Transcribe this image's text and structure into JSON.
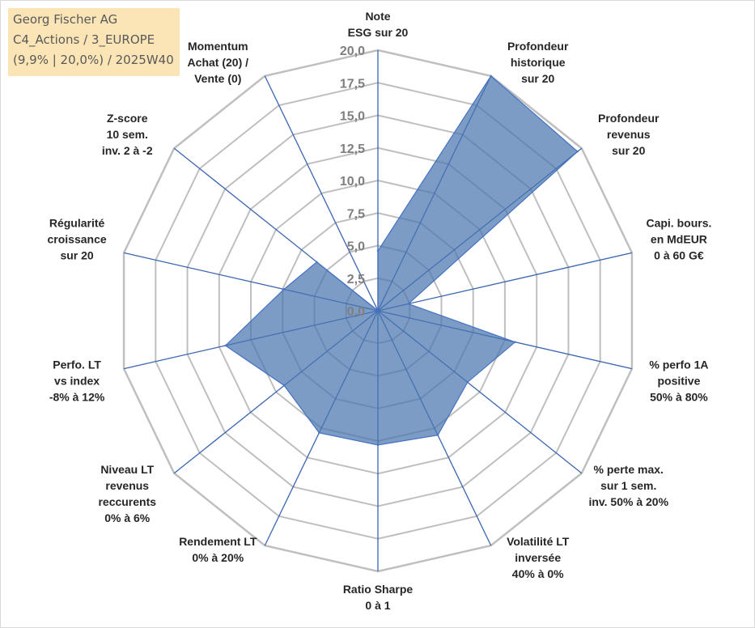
{
  "info": {
    "line1": "Georg Fischer AG",
    "line2": "C4_Actions / 3_EUROPE",
    "line3": "(9,9% | 20,0%) / 2025W40"
  },
  "chart_data": {
    "type": "radar",
    "title": "",
    "rlim": [
      0,
      20
    ],
    "ticks": [
      "0,0",
      "2,5",
      "5,0",
      "7,5",
      "10,0",
      "12,5",
      "15,0",
      "17,5",
      "20,0"
    ],
    "grid": true,
    "categories": [
      [
        "Note",
        "ESG sur 20"
      ],
      [
        "Profondeur",
        "historique",
        "sur 20"
      ],
      [
        "Profondeur",
        "revenus",
        "sur 20"
      ],
      [
        "Capi. bours.",
        "en MdEUR",
        "0 à 60 G€"
      ],
      [
        "% perfo 1A",
        "positive",
        "50% à 80%"
      ],
      [
        "% perte max.",
        "sur 1 sem.",
        "inv. 50% à 20%"
      ],
      [
        "Volatilité LT",
        "inversée",
        "40% à 0%"
      ],
      [
        "Ratio Sharpe",
        "0 à 1"
      ],
      [
        "Rendement LT",
        "0% à 20%"
      ],
      [
        "Niveau LT",
        "revenus",
        "reccurents",
        "0% à 6%"
      ],
      [
        "Perfo. LT",
        "vs index",
        "-8% à 12%"
      ],
      [
        "Régularité",
        "croissance",
        "sur 20"
      ],
      [
        "Z-score",
        "10 sem.",
        "inv. 2 à -2"
      ],
      [
        "Momentum",
        "Achat (20) /",
        "Vente (0)"
      ]
    ],
    "series": [
      {
        "values": [
          4.6,
          20.0,
          19.6,
          2.4,
          10.8,
          8.8,
          10.6,
          10.3,
          10.4,
          9.2,
          12.0,
          7.4,
          6.0,
          0.0
        ],
        "color": "#4a76b0"
      }
    ],
    "colors": {
      "fill": "#4a76b0",
      "stroke": "#4472c4",
      "grid": "#bfbfbf",
      "spoke": "#3a65b0"
    }
  }
}
